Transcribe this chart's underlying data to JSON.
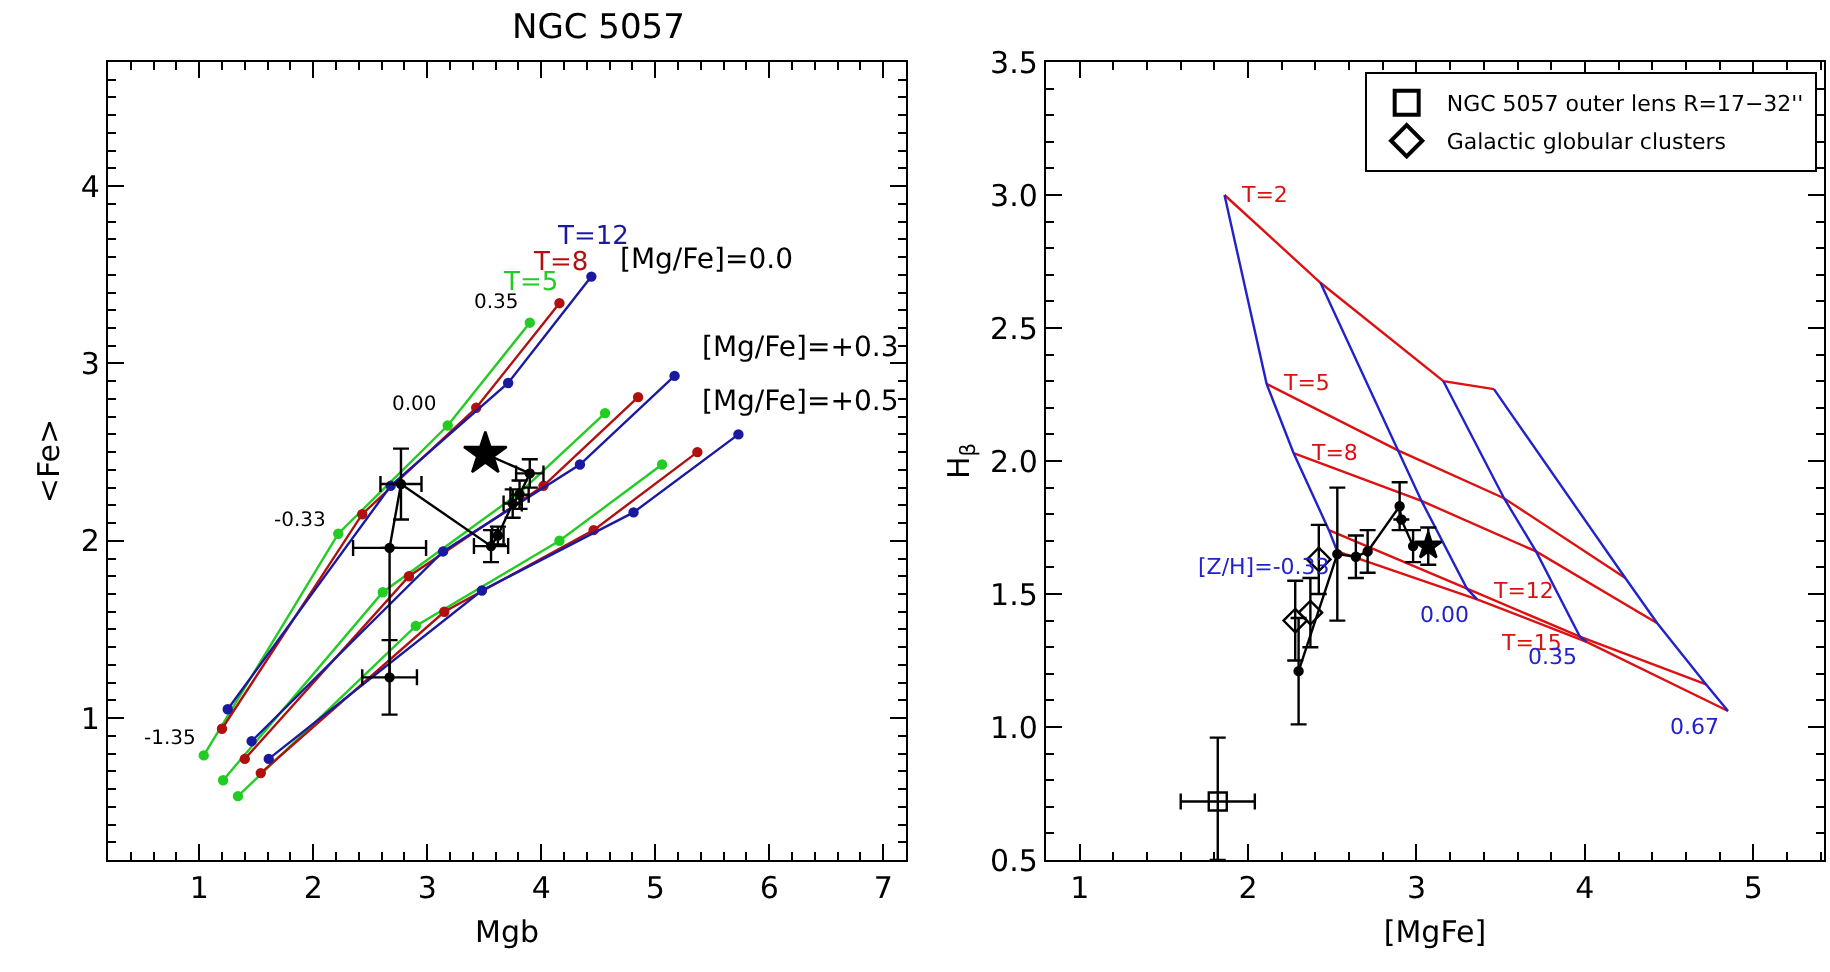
{
  "chart_data": [
    {
      "type": "line",
      "title": "NGC 5057",
      "xlabel": "Mgb",
      "ylabel": "<Fe>",
      "xlim": [
        0.2,
        7.2
      ],
      "ylim": [
        0.2,
        4.7
      ],
      "xticks": [
        1,
        2,
        3,
        4,
        5,
        6,
        7
      ],
      "yticks": [
        1,
        2,
        3,
        4
      ],
      "legend": false,
      "series": [
        {
          "name": "T=5",
          "color": "#22cc22",
          "marker": "circle",
          "x": [
            1.04,
            2.22,
            3.18,
            3.9
          ],
          "values": [
            0.79,
            2.04,
            2.65,
            3.23
          ]
        },
        {
          "name": "T=8",
          "color": "#b01010",
          "marker": "circle",
          "x": [
            1.2,
            2.43,
            3.43,
            4.16
          ],
          "values": [
            0.94,
            2.15,
            2.75,
            3.34
          ]
        },
        {
          "name": "T=12",
          "color": "#1a1aa0",
          "marker": "circle",
          "x": [
            1.25,
            2.68,
            3.71,
            4.44
          ],
          "values": [
            1.05,
            2.31,
            2.89,
            3.49
          ]
        },
        {
          "color": "#22cc22",
          "marker": "circle",
          "x": [
            1.21,
            2.61,
            3.81,
            4.56
          ],
          "values": [
            0.65,
            1.71,
            2.27,
            2.72
          ]
        },
        {
          "color": "#b01010",
          "marker": "circle",
          "x": [
            1.4,
            2.84,
            4.02,
            4.85
          ],
          "values": [
            0.77,
            1.8,
            2.31,
            2.81
          ]
        },
        {
          "color": "#1a1aa0",
          "marker": "circle",
          "x": [
            1.46,
            3.14,
            4.34,
            5.17
          ],
          "values": [
            0.87,
            1.94,
            2.43,
            2.93
          ]
        },
        {
          "color": "#22cc22",
          "marker": "circle",
          "x": [
            1.34,
            2.9,
            4.16,
            5.06
          ],
          "values": [
            0.56,
            1.52,
            2.0,
            2.43
          ]
        },
        {
          "color": "#b01010",
          "marker": "circle",
          "x": [
            1.54,
            3.15,
            4.46,
            5.37
          ],
          "values": [
            0.69,
            1.6,
            2.06,
            2.5
          ]
        },
        {
          "color": "#1a1aa0",
          "marker": "circle",
          "x": [
            1.61,
            3.48,
            4.81,
            5.73
          ],
          "values": [
            0.77,
            1.72,
            2.16,
            2.6
          ]
        },
        {
          "color": "#000000",
          "marker": "circle",
          "x": [
            2.67,
            2.67,
            2.77,
            3.56,
            3.62,
            3.75,
            3.81,
            3.9
          ],
          "values": [
            1.23,
            1.96,
            2.32,
            1.97,
            2.03,
            2.21,
            2.26,
            2.38
          ],
          "errors": [
            0.21,
            null,
            0.2,
            0.09,
            0.05,
            0.08,
            0.08,
            0.08
          ],
          "xerrors": [
            0.24,
            0.32,
            0.18,
            0.15,
            0.05,
            0.08,
            0.08,
            0.12
          ]
        },
        {
          "color": "#000000",
          "marker": "none",
          "x": [
            3.9,
            3.51
          ],
          "values": [
            2.38,
            2.49
          ]
        },
        {
          "type": "scatter",
          "color": "#000000",
          "marker": "star",
          "x": [
            3.51
          ],
          "values": [
            2.49
          ]
        }
      ],
      "annotations": [
        "[Mg/Fe]=0.0",
        "[Mg/Fe]=+0.3",
        "[Mg/Fe]=+0.5",
        "0.35",
        "0.00",
        "-0.33",
        "-1.35"
      ]
    },
    {
      "type": "line",
      "xlabel": "[MgFe]",
      "ylabel": "H$_{β}$",
      "xlim": [
        0.8,
        5.42
      ],
      "ylim": [
        0.5,
        3.5
      ],
      "xticks": [
        1,
        2,
        3,
        4,
        5
      ],
      "yticks": [
        0.5,
        {
          "value": 1,
          "label": "1.0"
        },
        1.5,
        {
          "value": 2,
          "label": "2.0"
        },
        2.5,
        {
          "value": 3,
          "label": "3.0"
        },
        3.5
      ],
      "legend": "top right",
      "series": [
        {
          "name": "T=2",
          "color": "#dd1111",
          "marker": "none",
          "x": [
            1.86,
            2.43,
            3.16,
            3.46
          ],
          "values": [
            3.0,
            2.67,
            2.3,
            2.27
          ]
        },
        {
          "name": "T=5",
          "color": "#dd1111",
          "marker": "none",
          "x": [
            2.11,
            2.89,
            3.52,
            4.24
          ],
          "values": [
            2.29,
            2.04,
            1.86,
            1.56
          ]
        },
        {
          "name": "T=8",
          "color": "#dd1111",
          "marker": "none",
          "x": [
            2.27,
            3.03,
            3.71,
            4.43
          ],
          "values": [
            2.03,
            1.85,
            1.66,
            1.39
          ]
        },
        {
          "name": "T=12",
          "color": "#dd1111",
          "marker": "none",
          "x": [
            2.48,
            3.3,
            3.97,
            4.72
          ],
          "values": [
            1.74,
            1.52,
            1.34,
            1.16
          ]
        },
        {
          "name": "T=15",
          "color": "#dd1111",
          "marker": "none",
          "x": [
            2.53,
            3.36,
            4.01,
            4.85
          ],
          "values": [
            1.66,
            1.48,
            1.32,
            1.06
          ]
        },
        {
          "name": "[Z/H]=-0.33",
          "color": "#2222cc",
          "marker": "none",
          "x": [
            1.86,
            2.11,
            2.27,
            2.48,
            2.53
          ],
          "values": [
            3.0,
            2.29,
            2.03,
            1.74,
            1.66
          ]
        },
        {
          "name": "0.00",
          "color": "#2222cc",
          "marker": "none",
          "x": [
            2.43,
            2.89,
            3.03,
            3.3,
            3.36
          ],
          "values": [
            2.67,
            2.04,
            1.85,
            1.52,
            1.48
          ]
        },
        {
          "name": "0.35",
          "color": "#2222cc",
          "marker": "none",
          "x": [
            3.16,
            3.52,
            3.71,
            3.97,
            4.01
          ],
          "values": [
            2.3,
            1.86,
            1.66,
            1.34,
            1.32
          ]
        },
        {
          "name": "0.67",
          "color": "#2222cc",
          "marker": "none",
          "x": [
            3.46,
            4.24,
            4.43,
            4.72,
            4.85
          ],
          "values": [
            2.27,
            1.56,
            1.39,
            1.16,
            1.06
          ]
        },
        {
          "color": "#000000",
          "marker": "circle",
          "x": [
            2.3,
            2.53,
            2.64,
            2.71,
            2.9,
            2.91,
            2.98
          ],
          "values": [
            1.21,
            1.65,
            1.64,
            1.66,
            1.83,
            1.78,
            1.68
          ],
          "errors": [
            0.2,
            0.25,
            0.08,
            0.08,
            0.09,
            null,
            0.06
          ]
        },
        {
          "type": "scatter",
          "color": "#000000",
          "marker": "star",
          "x": [
            3.07
          ],
          "values": [
            1.68
          ],
          "errors": [
            0.07
          ]
        },
        {
          "type": "scatter",
          "name": "Galactic globular clusters",
          "color": "#000000",
          "marker": "diamond",
          "x": [
            2.28,
            2.37,
            2.42
          ],
          "values": [
            1.4,
            1.43,
            1.63
          ],
          "errors": [
            0.15,
            0.13,
            0.13
          ]
        },
        {
          "type": "scatter",
          "name": "NGC 5057 outer lens R=17−32''",
          "color": "#000000",
          "marker": "square",
          "x": [
            1.82
          ],
          "values": [
            0.72
          ],
          "errors": [
            [
              0.5,
              0.96
            ]
          ],
          "xerrors": [
            0.22
          ]
        }
      ]
    }
  ]
}
